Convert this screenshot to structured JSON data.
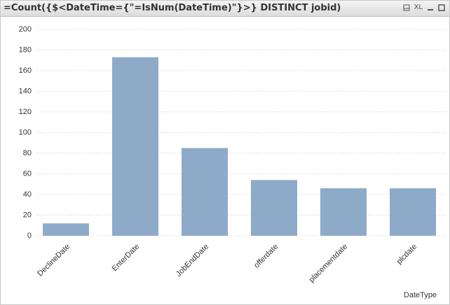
{
  "header": {
    "title": "=Count({$<DateTime={\"=IsNum(DateTime)\"}>} DISTINCT jobid)",
    "xl_label": "XL"
  },
  "chart_data": {
    "type": "bar",
    "x_label": "DateType",
    "categories": [
      "DeclineDate",
      "EnterDate",
      "JobEndDate",
      "offerdate",
      "placementdate",
      "plcdate"
    ],
    "values": [
      12,
      173,
      85,
      54,
      46,
      46
    ],
    "color": "#8eaac9",
    "ylim": [
      0,
      200
    ],
    "yticks": [
      0,
      20,
      40,
      60,
      80,
      100,
      120,
      140,
      160,
      180,
      200
    ],
    "grid": true
  }
}
